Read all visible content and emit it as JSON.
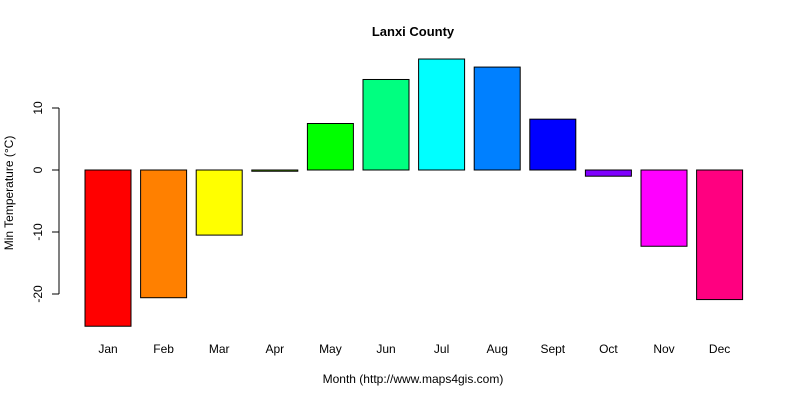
{
  "chart_data": {
    "type": "bar",
    "title": "Lanxi County",
    "xlabel": "Month (http://www.maps4gis.com)",
    "ylabel": "Min Temperature (°C)",
    "categories": [
      "Jan",
      "Feb",
      "Mar",
      "Apr",
      "May",
      "Jun",
      "Jul",
      "Aug",
      "Sept",
      "Oct",
      "Nov",
      "Dec"
    ],
    "values": [
      -25.2,
      -20.6,
      -10.5,
      -0.2,
      7.5,
      14.6,
      17.9,
      16.6,
      8.2,
      -1.0,
      -12.3,
      -20.9
    ],
    "colors": [
      "#FF0000",
      "#FF8000",
      "#FFFF00",
      "#80FF00",
      "#00FF00",
      "#00FF80",
      "#00FFFF",
      "#0080FF",
      "#0000FF",
      "#8000FF",
      "#FF00FF",
      "#FF0080"
    ],
    "yticks": [
      -20,
      -10,
      0,
      10
    ],
    "ylim": [
      -25.2,
      17.9
    ],
    "grid": false,
    "legend": null
  }
}
